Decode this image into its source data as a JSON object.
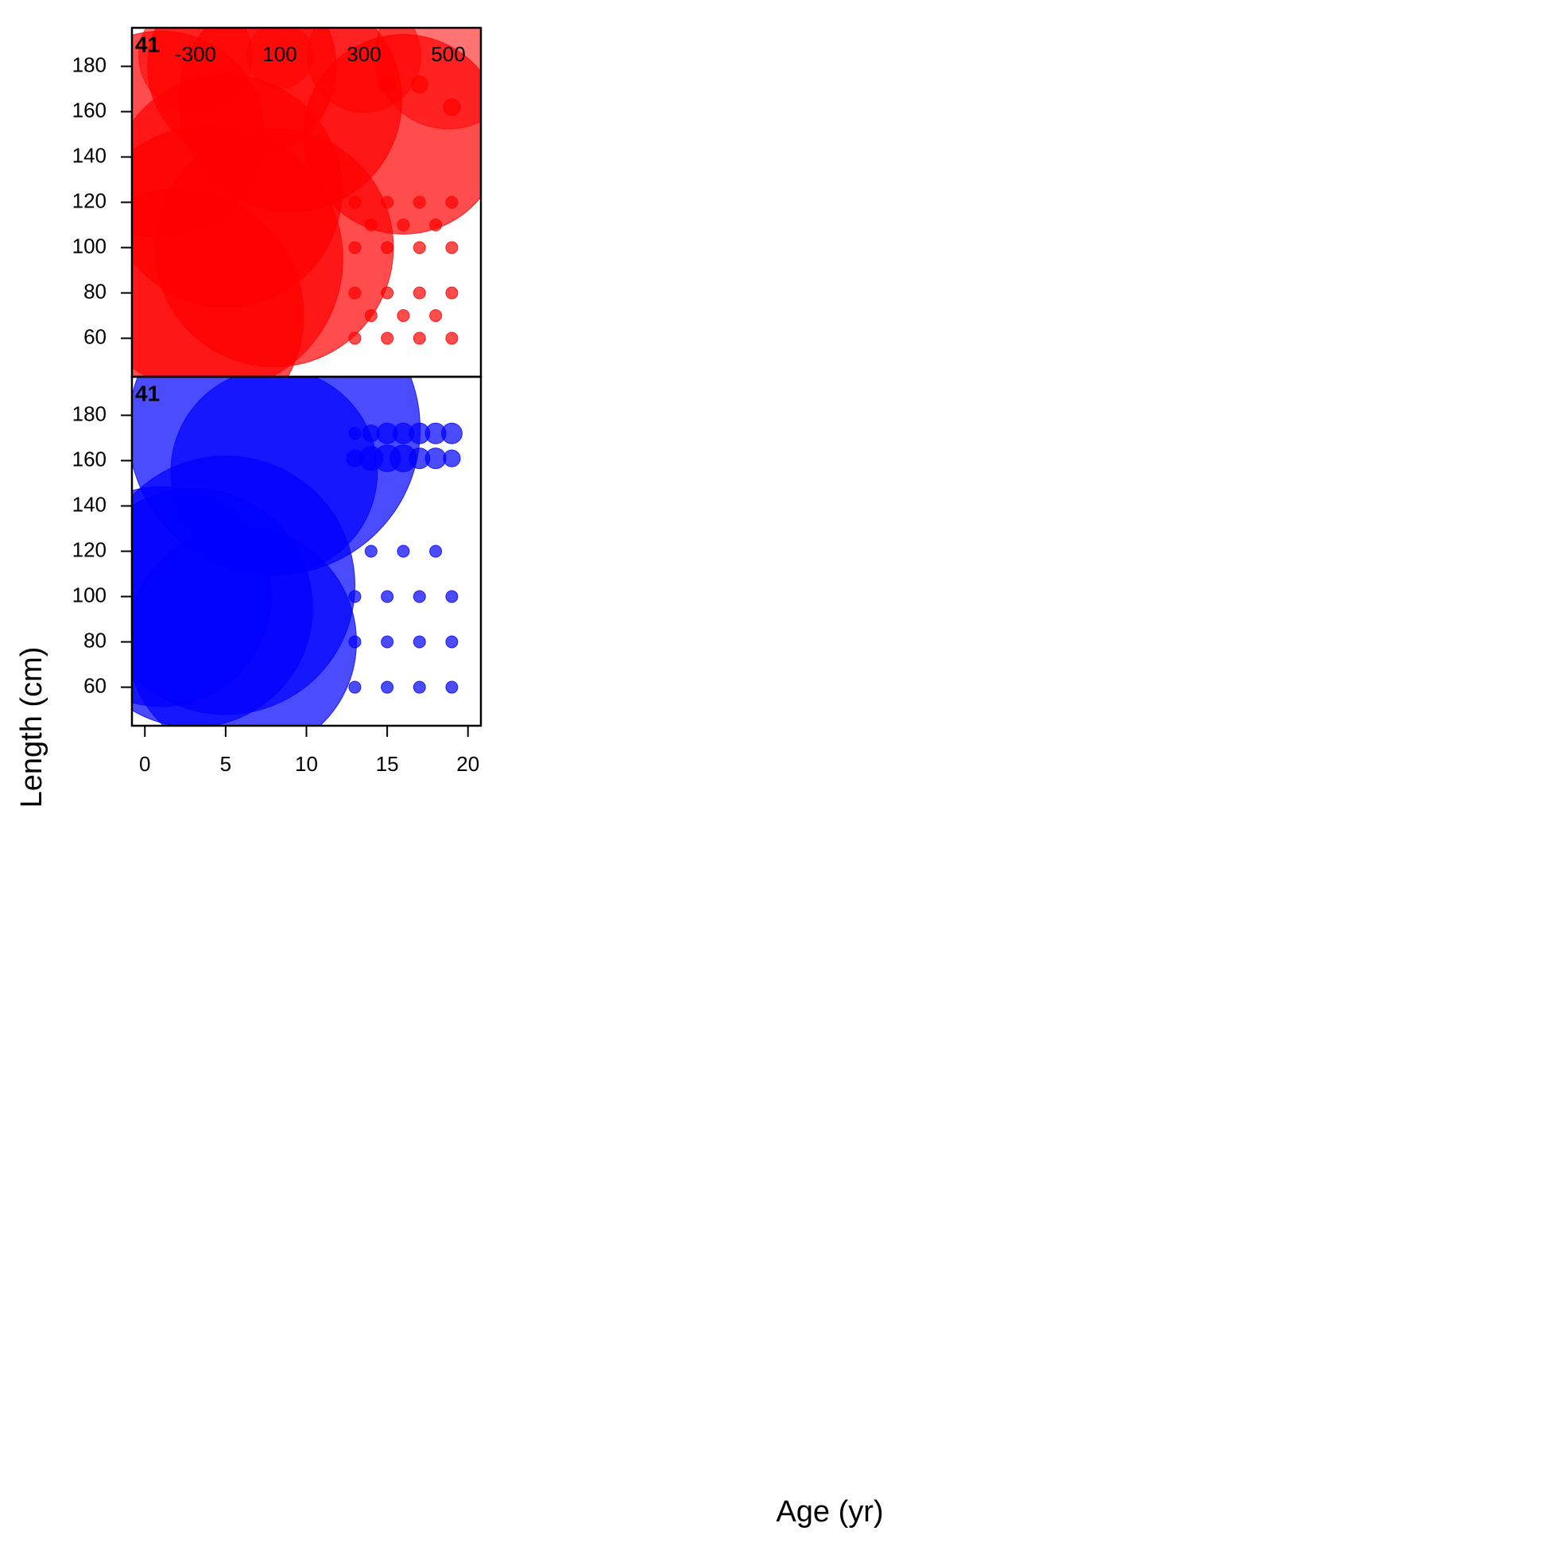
{
  "chart_data": {
    "type": "bubble",
    "x_label": "Age (yr)",
    "y_label": "Length (cm)",
    "xlim": [
      -0.8,
      20.8
    ],
    "xticks": [
      0,
      5,
      10,
      15,
      20
    ],
    "ylim": [
      43,
      197
    ],
    "yticks": [
      60,
      80,
      100,
      120,
      140,
      160,
      180
    ],
    "legend": {
      "values": [
        -300,
        100,
        300,
        500
      ]
    },
    "panels": [
      {
        "label": "41",
        "color": "#ff0000",
        "x": [
          1,
          6,
          9,
          16,
          4,
          8,
          2,
          5,
          13,
          15,
          17,
          19,
          13,
          15,
          17,
          19,
          13,
          15,
          17,
          19,
          13,
          15,
          17,
          19,
          14,
          16,
          18,
          14,
          16,
          18,
          15,
          17,
          19
        ],
        "y": [
          150,
          180,
          165,
          150,
          95,
          100,
          70,
          125,
          60,
          60,
          60,
          60,
          80,
          80,
          80,
          80,
          100,
          100,
          100,
          100,
          120,
          120,
          120,
          120,
          70,
          70,
          70,
          110,
          110,
          110,
          172,
          172,
          162
        ],
        "sizes": [
          300,
          250,
          350,
          280,
          500,
          400,
          450,
          380,
          1,
          1,
          1,
          1,
          1,
          1,
          1,
          1,
          1,
          1,
          1,
          1,
          1,
          1,
          1,
          1,
          1,
          1,
          1,
          1,
          1,
          1,
          2,
          2,
          2
        ]
      },
      {
        "label": "41",
        "color": "#0000ff",
        "x": [
          8,
          8,
          5,
          3,
          1,
          6,
          13,
          14,
          15,
          16,
          17,
          18,
          19,
          13,
          14,
          15,
          16,
          17,
          18,
          19,
          13,
          15,
          17,
          19,
          13,
          15,
          17,
          19,
          13,
          15,
          17,
          19,
          14,
          16,
          18
        ],
        "y": [
          174,
          155,
          105,
          95,
          100,
          80,
          172,
          172,
          172,
          172,
          172,
          172,
          172,
          161,
          161,
          161,
          161,
          161,
          161,
          161,
          60,
          60,
          60,
          60,
          80,
          80,
          80,
          80,
          100,
          100,
          100,
          100,
          120,
          120,
          120
        ],
        "sizes": [
          600,
          300,
          470,
          400,
          340,
          370,
          1,
          2,
          3,
          3,
          3,
          3,
          3,
          2,
          4,
          5,
          5,
          3,
          3,
          2,
          1,
          1,
          1,
          1,
          1,
          1,
          1,
          1,
          1,
          1,
          1,
          1,
          1,
          1,
          1
        ]
      }
    ]
  }
}
